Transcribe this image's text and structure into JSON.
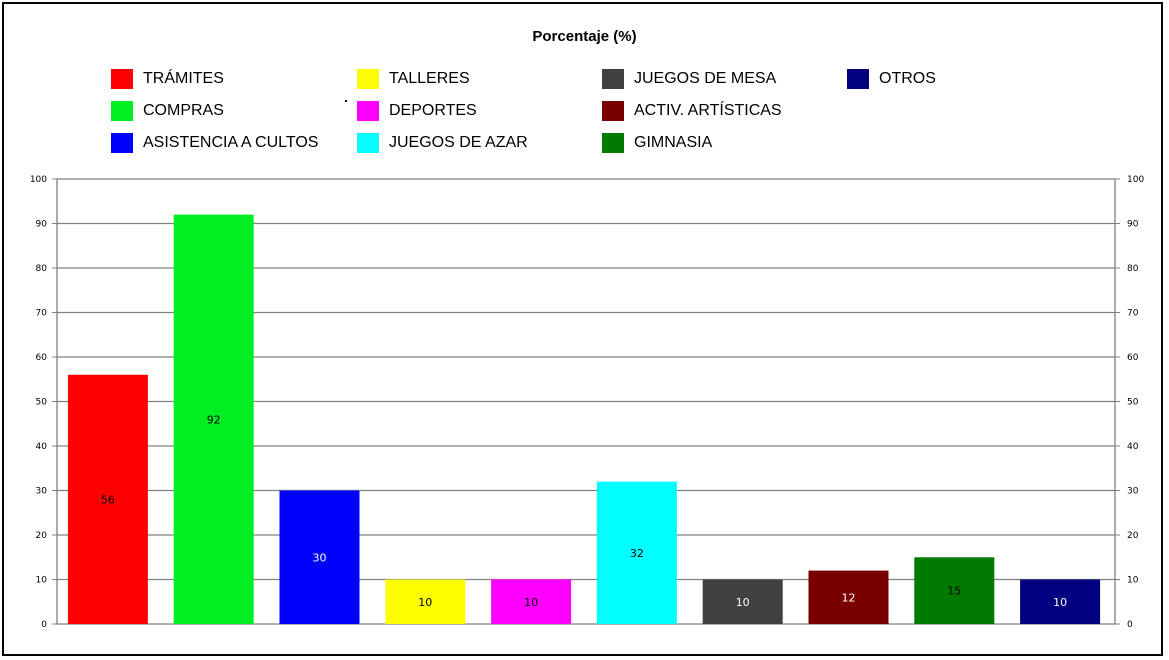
{
  "chart_data": {
    "type": "bar",
    "title": "Porcentaje (%)",
    "categories": [
      "TRÁMITES",
      "COMPRAS",
      "ASISTENCIA A CULTOS",
      "TALLERES",
      "DEPORTES",
      "JUEGOS DE AZAR",
      "JUEGOS DE MESA",
      "ACTIV. ARTÍSTICAS",
      "GIMNASIA",
      "OTROS"
    ],
    "values": [
      56,
      92,
      30,
      10,
      10,
      32,
      10,
      12,
      15,
      10
    ],
    "data_labels": [
      "56",
      "92",
      "30",
      "10",
      "10",
      "32",
      "10",
      "12",
      "15",
      "10"
    ],
    "colors": [
      "#ff0000",
      "#00ee22",
      "#0000ff",
      "#ffff00",
      "#ff00ff",
      "#00ffff",
      "#404040",
      "#7a0000",
      "#007a00",
      "#000080"
    ],
    "label_colors": [
      "#000000",
      "#000000",
      "#ffffff",
      "#000000",
      "#000000",
      "#000000",
      "#ffffff",
      "#ffffff",
      "#000000",
      "#ffffff"
    ],
    "ylim": [
      0,
      100
    ],
    "yticks": [
      "0",
      "10",
      "20",
      "30",
      "40",
      "50",
      "60",
      "70",
      "80",
      "90",
      "100"
    ],
    "secondary_y_axis": true,
    "grid": true,
    "legend_position": "top",
    "xlabel": "",
    "ylabel": ""
  }
}
